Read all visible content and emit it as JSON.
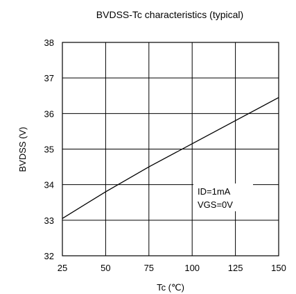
{
  "chart_data": {
    "type": "line",
    "title": "BVDSS-Tc characteristics (typical)",
    "xlabel": "Tc (℃)",
    "ylabel": "BVDSS (V)",
    "xlim": [
      25,
      150
    ],
    "ylim": [
      32,
      38
    ],
    "xticks": [
      25,
      50,
      75,
      100,
      125,
      150
    ],
    "yticks": [
      32,
      33,
      34,
      35,
      36,
      37,
      38
    ],
    "grid": true,
    "series": [
      {
        "x": [
          25,
          50,
          75,
          100,
          125,
          150
        ],
        "values": [
          33.05,
          33.8,
          34.5,
          35.15,
          35.8,
          36.45
        ]
      }
    ],
    "annotations": [
      "ID=1mA",
      "VGS=0V"
    ]
  }
}
